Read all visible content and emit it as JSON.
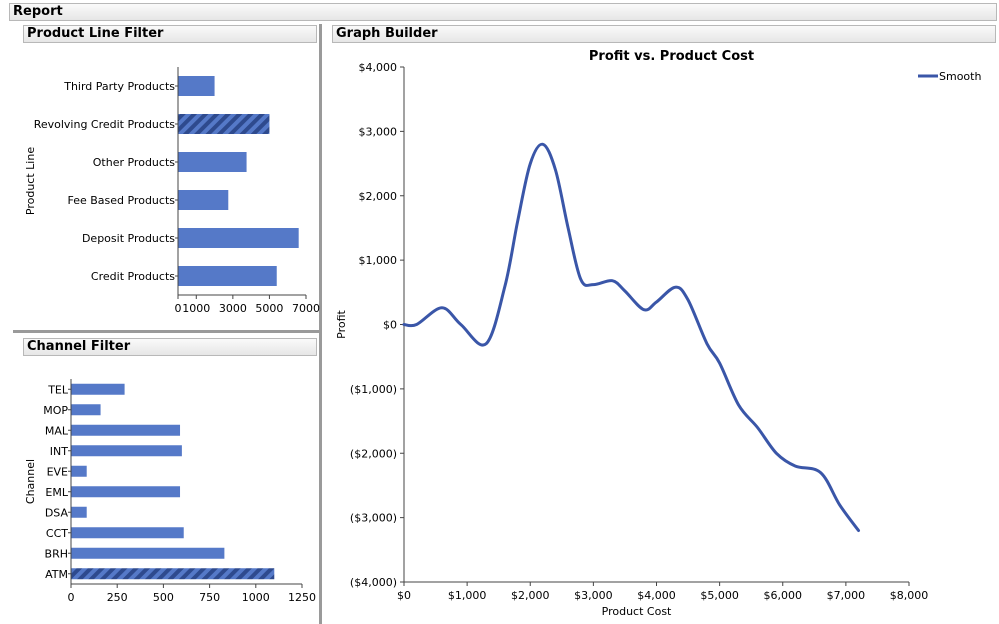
{
  "headers": {
    "report": "Report",
    "product_line_filter": "Product Line Filter",
    "graph_builder": "Graph Builder",
    "channel_filter": "Channel Filter"
  },
  "colors": {
    "bar": "#5579c8",
    "line": "#3a56a8",
    "axis": "#444444"
  },
  "chart_data": [
    {
      "type": "bar",
      "orientation": "horizontal",
      "ylabel": "Product Line",
      "categories": [
        "Third Party Products",
        "Revolving Credit Products",
        "Other Products",
        "Fee Based Products",
        "Deposit Products",
        "Credit Products"
      ],
      "values": [
        2000,
        5000,
        3750,
        2750,
        6600,
        5400
      ],
      "selected": [
        "Revolving Credit Products"
      ],
      "xlim": [
        0,
        7000
      ],
      "xticks": [
        0,
        1000,
        3000,
        5000,
        7000
      ],
      "xtick_labels": [
        "0",
        "1000",
        "3000",
        "5000",
        "7000"
      ]
    },
    {
      "type": "bar",
      "orientation": "horizontal",
      "ylabel": "Channel",
      "categories": [
        "TEL",
        "MOP",
        "MAL",
        "INT",
        "EVE",
        "EML",
        "DSA",
        "CCT",
        "BRH",
        "ATM"
      ],
      "values": [
        290,
        160,
        590,
        600,
        85,
        590,
        85,
        610,
        830,
        1100
      ],
      "selected": [
        "ATM"
      ],
      "xlim": [
        0,
        1250
      ],
      "xticks": [
        0,
        250,
        500,
        750,
        1000,
        1250
      ],
      "xtick_labels": [
        "0",
        "250",
        "500",
        "750",
        "1000",
        "1250"
      ]
    },
    {
      "type": "line",
      "title": "Profit vs. Product Cost",
      "xlabel": "Product Cost",
      "ylabel": "Profit",
      "legend": "Smooth",
      "legend_position": "top-right",
      "xlim": [
        0,
        8000
      ],
      "ylim": [
        -4000,
        4000
      ],
      "xticks": [
        0,
        1000,
        2000,
        3000,
        4000,
        5000,
        6000,
        7000,
        8000
      ],
      "xtick_labels": [
        "$0",
        "$1,000",
        "$2,000",
        "$3,000",
        "$4,000",
        "$5,000",
        "$6,000",
        "$7,000",
        "$8,000"
      ],
      "yticks": [
        4000,
        3000,
        2000,
        1000,
        0,
        -1000,
        -2000,
        -3000,
        -4000
      ],
      "ytick_labels": [
        "$4,000",
        "$3,000",
        "$2,000",
        "$1,000",
        "$0",
        "($1,000)",
        "($2,000)",
        "($3,000)",
        "($4,000)"
      ],
      "series": [
        {
          "name": "Smooth",
          "x": [
            0,
            200,
            600,
            900,
            1300,
            1600,
            1800,
            2000,
            2200,
            2400,
            2600,
            2800,
            3000,
            3300,
            3500,
            3800,
            4000,
            4300,
            4500,
            4800,
            5000,
            5300,
            5600,
            5900,
            6200,
            6600,
            6900,
            7200
          ],
          "y": [
            0,
            0,
            260,
            0,
            -300,
            600,
            1600,
            2500,
            2800,
            2400,
            1500,
            700,
            620,
            680,
            520,
            230,
            350,
            580,
            380,
            -300,
            -600,
            -1250,
            -1600,
            -2000,
            -2200,
            -2300,
            -2800,
            -3200
          ]
        }
      ]
    }
  ]
}
